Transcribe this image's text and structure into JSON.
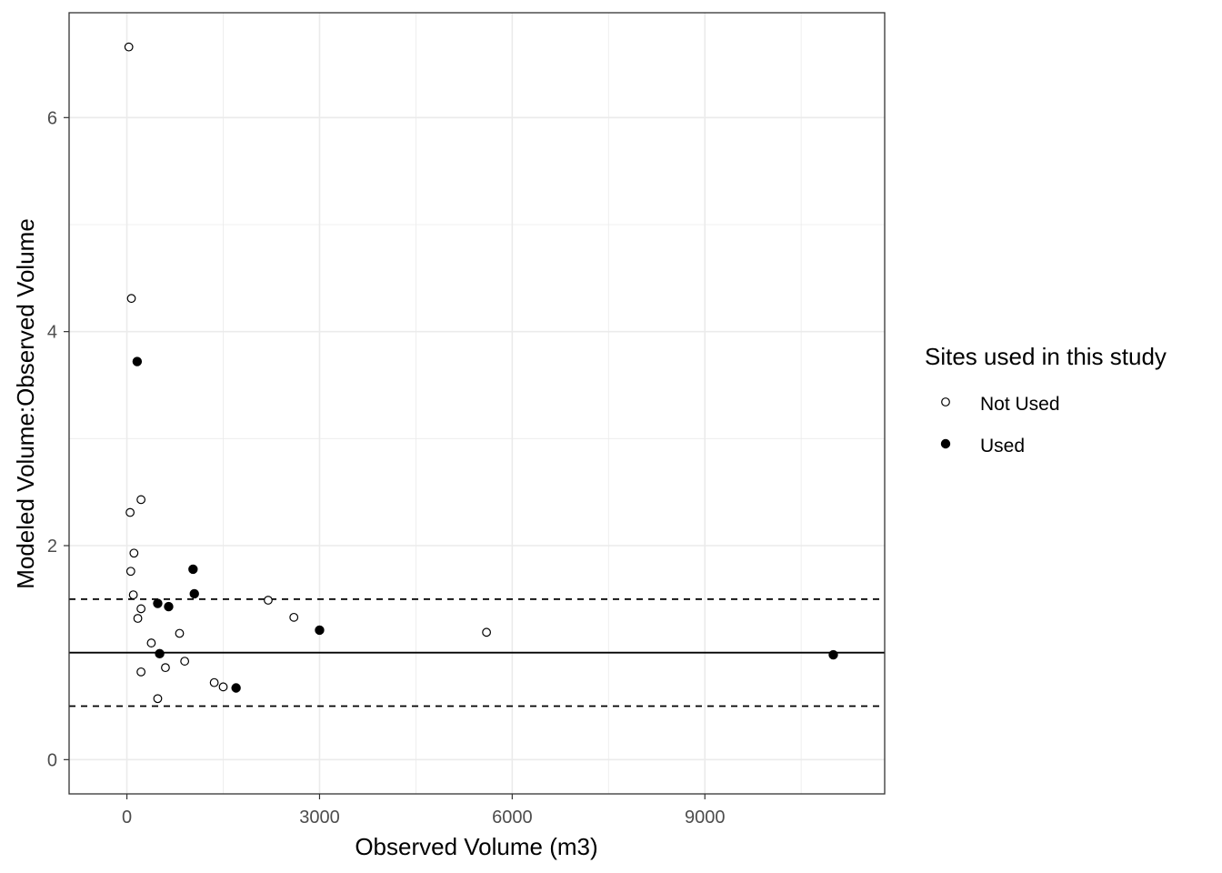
{
  "chart_data": {
    "type": "scatter",
    "title": "",
    "xlabel": "Observed Volume (m3)",
    "ylabel": "Modeled Volume:Observed Volume",
    "xlim": [
      -900,
      11800
    ],
    "ylim": [
      -0.32,
      6.98
    ],
    "x_ticks": [
      0,
      3000,
      6000,
      9000
    ],
    "x_tick_labels": [
      "0",
      "3000",
      "6000",
      "9000"
    ],
    "y_ticks": [
      0,
      2,
      4,
      6
    ],
    "y_tick_labels": [
      "0",
      "2",
      "4",
      "6"
    ],
    "grid": true,
    "reference_lines": [
      {
        "y": 1.0,
        "style": "solid"
      },
      {
        "y": 1.5,
        "style": "dashed"
      },
      {
        "y": 0.5,
        "style": "dashed"
      }
    ],
    "legend": {
      "title": "Sites used in this study",
      "position": "right",
      "entries": [
        "Not Used",
        "Used"
      ]
    },
    "series": [
      {
        "name": "Not Used",
        "marker": "open-circle",
        "points": [
          [
            30,
            6.66
          ],
          [
            70,
            4.31
          ],
          [
            220,
            2.43
          ],
          [
            50,
            2.31
          ],
          [
            110,
            1.93
          ],
          [
            60,
            1.76
          ],
          [
            100,
            1.54
          ],
          [
            220,
            1.41
          ],
          [
            170,
            1.32
          ],
          [
            380,
            1.09
          ],
          [
            820,
            1.18
          ],
          [
            2200,
            1.49
          ],
          [
            2600,
            1.33
          ],
          [
            5600,
            1.19
          ],
          [
            220,
            0.82
          ],
          [
            600,
            0.86
          ],
          [
            900,
            0.92
          ],
          [
            1360,
            0.72
          ],
          [
            1500,
            0.68
          ],
          [
            480,
            0.57
          ]
        ]
      },
      {
        "name": "Used",
        "marker": "filled-circle",
        "points": [
          [
            160,
            3.72
          ],
          [
            1030,
            1.78
          ],
          [
            1050,
            1.55
          ],
          [
            480,
            1.46
          ],
          [
            650,
            1.43
          ],
          [
            3000,
            1.21
          ],
          [
            510,
            0.99
          ],
          [
            1700,
            0.67
          ],
          [
            11000,
            0.98
          ]
        ]
      }
    ]
  }
}
